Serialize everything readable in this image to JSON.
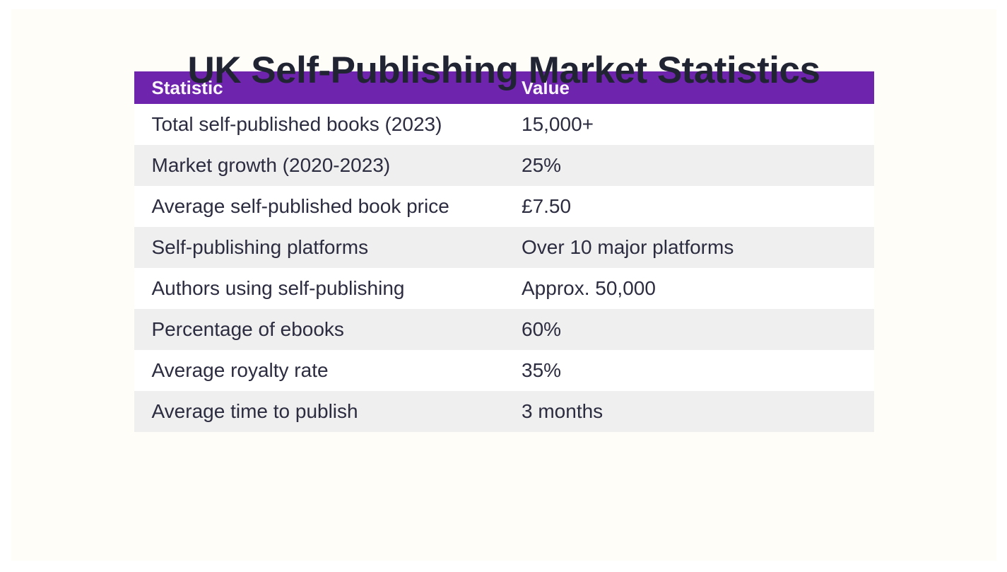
{
  "page": {
    "title": "UK Self-Publishing Market Statistics",
    "colors": {
      "outer_background": "#ffffff",
      "panel_background": "#fffdf7",
      "header_background": "#6e24ad",
      "header_text": "#f8f6fb",
      "row_background": "#ffffff",
      "row_stripe_background": "#efefef",
      "body_text": "#2c2c40",
      "title_text": "#202433"
    }
  },
  "table": {
    "columns": [
      "Statistic",
      "Value"
    ],
    "rows": [
      {
        "statistic": "Total self-published books (2023)",
        "value": "15,000+"
      },
      {
        "statistic": "Market growth (2020-2023)",
        "value": "25%"
      },
      {
        "statistic": "Average self-published book price",
        "value": "£7.50"
      },
      {
        "statistic": "Self-publishing platforms",
        "value": "Over 10 major platforms"
      },
      {
        "statistic": "Authors using self-publishing",
        "value": "Approx. 50,000"
      },
      {
        "statistic": "Percentage of ebooks",
        "value": "60%"
      },
      {
        "statistic": "Average royalty rate",
        "value": "35%"
      },
      {
        "statistic": "Average time to publish",
        "value": "3 months"
      }
    ]
  }
}
